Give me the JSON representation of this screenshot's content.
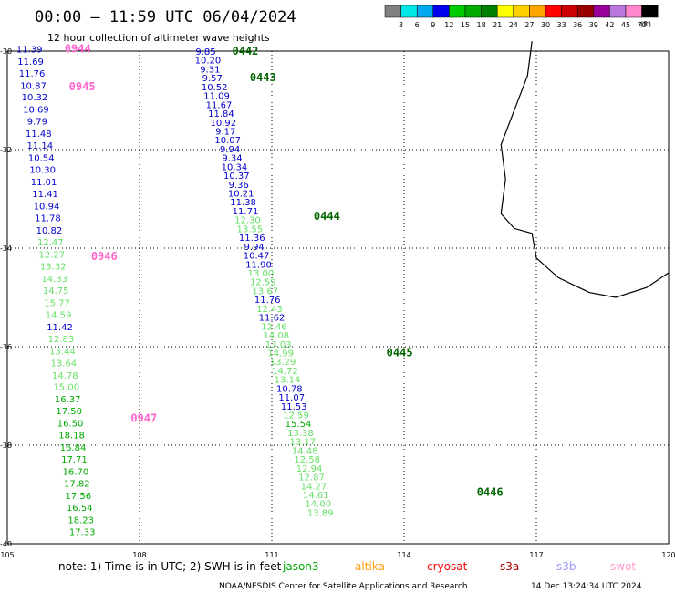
{
  "header": {
    "title": "00:00 — 11:59 UTC 06/04/2024",
    "subtitle": "12 hour collection of altimeter wave heights"
  },
  "legend": {
    "unit": "(ft)",
    "colors": [
      "#808080",
      "#00e5e5",
      "#00a8f0",
      "#0000ee",
      "#00cc00",
      "#00aa00",
      "#008000",
      "#ffff00",
      "#ffd000",
      "#ffa500",
      "#ff0000",
      "#cc0000",
      "#990000",
      "#990099",
      "#bb77dd",
      "#ff88cc",
      "#000000"
    ],
    "labels": [
      "3",
      "6",
      "9",
      "12",
      "15",
      "18",
      "21",
      "24",
      "27",
      "30",
      "33",
      "36",
      "39",
      "42",
      "45",
      "70"
    ]
  },
  "axes": {
    "lon_labels": [
      "105",
      "108",
      "111",
      "114",
      "117",
      "120"
    ],
    "lat_labels": [
      "-30",
      "-32",
      "-34",
      "-36",
      "-38",
      "-40"
    ]
  },
  "colors": {
    "blue": "#0000cc",
    "green": "#00aa00",
    "lightgreen": "#66e066",
    "pink": "#ff66cc",
    "darkgreen": "#006600"
  },
  "tracks": [
    {
      "pass_labels": [
        {
          "text": "0944",
          "lon": 106.3,
          "lat": -29.95
        },
        {
          "text": "0945",
          "lon": 106.4,
          "lat": -30.72
        },
        {
          "text": "0946",
          "lon": 106.9,
          "lat": -34.17
        },
        {
          "text": "0947",
          "lon": 107.8,
          "lat": -37.45
        }
      ],
      "points": [
        {
          "lon": 105.5,
          "lat": -29.95,
          "v": "11.39",
          "c": "blue"
        },
        {
          "lon": 105.53,
          "lat": -30.2,
          "v": "11.69",
          "c": "blue"
        },
        {
          "lon": 105.56,
          "lat": -30.44,
          "v": "11.76",
          "c": "blue"
        },
        {
          "lon": 105.59,
          "lat": -30.69,
          "v": "10.87",
          "c": "blue"
        },
        {
          "lon": 105.62,
          "lat": -30.93,
          "v": "10.32",
          "c": "blue"
        },
        {
          "lon": 105.65,
          "lat": -31.18,
          "v": "10.69",
          "c": "blue"
        },
        {
          "lon": 105.68,
          "lat": -31.42,
          "v": "9.79",
          "c": "blue"
        },
        {
          "lon": 105.71,
          "lat": -31.67,
          "v": "11.48",
          "c": "blue"
        },
        {
          "lon": 105.74,
          "lat": -31.91,
          "v": "11.14",
          "c": "blue"
        },
        {
          "lon": 105.77,
          "lat": -32.16,
          "v": "10.54",
          "c": "blue"
        },
        {
          "lon": 105.8,
          "lat": -32.4,
          "v": "10.30",
          "c": "blue"
        },
        {
          "lon": 105.83,
          "lat": -32.65,
          "v": "11.01",
          "c": "blue"
        },
        {
          "lon": 105.86,
          "lat": -32.89,
          "v": "11.41",
          "c": "blue"
        },
        {
          "lon": 105.89,
          "lat": -33.14,
          "v": "10.94",
          "c": "blue"
        },
        {
          "lon": 105.92,
          "lat": -33.38,
          "v": "11.78",
          "c": "blue"
        },
        {
          "lon": 105.95,
          "lat": -33.63,
          "v": "10.82",
          "c": "blue"
        },
        {
          "lon": 105.98,
          "lat": -33.87,
          "v": "12.47",
          "c": "lightgreen"
        },
        {
          "lon": 106.01,
          "lat": -34.12,
          "v": "12.27",
          "c": "lightgreen"
        },
        {
          "lon": 106.04,
          "lat": -34.36,
          "v": "13.32",
          "c": "lightgreen"
        },
        {
          "lon": 106.07,
          "lat": -34.61,
          "v": "14.33",
          "c": "lightgreen"
        },
        {
          "lon": 106.1,
          "lat": -34.85,
          "v": "14.75",
          "c": "lightgreen"
        },
        {
          "lon": 106.13,
          "lat": -35.1,
          "v": "15.77",
          "c": "lightgreen"
        },
        {
          "lon": 106.16,
          "lat": -35.34,
          "v": "14.59",
          "c": "lightgreen"
        },
        {
          "lon": 106.19,
          "lat": -35.59,
          "v": "11.42",
          "c": "blue"
        },
        {
          "lon": 106.22,
          "lat": -35.83,
          "v": "12.83",
          "c": "lightgreen"
        },
        {
          "lon": 106.25,
          "lat": -36.08,
          "v": "13.44",
          "c": "lightgreen"
        },
        {
          "lon": 106.28,
          "lat": -36.32,
          "v": "13.64",
          "c": "lightgreen"
        },
        {
          "lon": 106.31,
          "lat": -36.57,
          "v": "14.78",
          "c": "lightgreen"
        },
        {
          "lon": 106.34,
          "lat": -36.81,
          "v": "15.00",
          "c": "lightgreen"
        },
        {
          "lon": 106.37,
          "lat": -37.06,
          "v": "16.37",
          "c": "green"
        },
        {
          "lon": 106.4,
          "lat": -37.3,
          "v": "17.50",
          "c": "green"
        },
        {
          "lon": 106.43,
          "lat": -37.55,
          "v": "16.50",
          "c": "green"
        },
        {
          "lon": 106.46,
          "lat": -37.79,
          "v": "18.18",
          "c": "green"
        },
        {
          "lon": 106.49,
          "lat": -38.04,
          "v": "16.84",
          "c": "green"
        },
        {
          "lon": 106.52,
          "lat": -38.28,
          "v": "17.71",
          "c": "green"
        },
        {
          "lon": 106.55,
          "lat": -38.53,
          "v": "16.70",
          "c": "green"
        },
        {
          "lon": 106.58,
          "lat": -38.77,
          "v": "17.82",
          "c": "green"
        },
        {
          "lon": 106.61,
          "lat": -39.02,
          "v": "17.56",
          "c": "green"
        },
        {
          "lon": 106.64,
          "lat": -39.26,
          "v": "16.54",
          "c": "green"
        },
        {
          "lon": 106.67,
          "lat": -39.51,
          "v": "18.23",
          "c": "green"
        },
        {
          "lon": 106.7,
          "lat": -39.75,
          "v": "17.33",
          "c": "green"
        }
      ]
    },
    {
      "pass_labels": [
        {
          "text": "0442",
          "lon": 110.1,
          "lat": -30.0
        },
        {
          "text": "0443",
          "lon": 110.5,
          "lat": -30.54
        },
        {
          "text": "0444",
          "lon": 111.95,
          "lat": -33.35
        },
        {
          "text": "0445",
          "lon": 113.6,
          "lat": -36.12
        },
        {
          "text": "0446",
          "lon": 115.65,
          "lat": -38.95
        }
      ],
      "points": [
        {
          "lon": 109.5,
          "lat": -30.0,
          "v": "9.85",
          "c": "blue"
        },
        {
          "lon": 109.55,
          "lat": -30.18,
          "v": "10.20",
          "c": "blue"
        },
        {
          "lon": 109.6,
          "lat": -30.36,
          "v": "9.31",
          "c": "blue"
        },
        {
          "lon": 109.65,
          "lat": -30.54,
          "v": "9.57",
          "c": "blue"
        },
        {
          "lon": 109.7,
          "lat": -30.72,
          "v": "10.52",
          "c": "blue"
        },
        {
          "lon": 109.75,
          "lat": -30.9,
          "v": "11.09",
          "c": "blue"
        },
        {
          "lon": 109.8,
          "lat": -31.08,
          "v": "11.67",
          "c": "blue"
        },
        {
          "lon": 109.85,
          "lat": -31.26,
          "v": "11.84",
          "c": "blue"
        },
        {
          "lon": 109.9,
          "lat": -31.44,
          "v": "10.92",
          "c": "blue"
        },
        {
          "lon": 109.95,
          "lat": -31.62,
          "v": "9.17",
          "c": "blue"
        },
        {
          "lon": 110.0,
          "lat": -31.8,
          "v": "10.07",
          "c": "blue"
        },
        {
          "lon": 110.05,
          "lat": -31.98,
          "v": "9.94",
          "c": "blue"
        },
        {
          "lon": 110.1,
          "lat": -32.16,
          "v": "9.34",
          "c": "blue"
        },
        {
          "lon": 110.15,
          "lat": -32.34,
          "v": "10.34",
          "c": "blue"
        },
        {
          "lon": 110.2,
          "lat": -32.52,
          "v": "10.37",
          "c": "blue"
        },
        {
          "lon": 110.25,
          "lat": -32.7,
          "v": "9.36",
          "c": "blue"
        },
        {
          "lon": 110.3,
          "lat": -32.88,
          "v": "10.21",
          "c": "blue"
        },
        {
          "lon": 110.35,
          "lat": -33.06,
          "v": "11.38",
          "c": "blue"
        },
        {
          "lon": 110.4,
          "lat": -33.24,
          "v": "11.71",
          "c": "blue"
        },
        {
          "lon": 110.45,
          "lat": -33.42,
          "v": "12.30",
          "c": "lightgreen"
        },
        {
          "lon": 110.5,
          "lat": -33.6,
          "v": "13.55",
          "c": "lightgreen"
        },
        {
          "lon": 110.55,
          "lat": -33.78,
          "v": "11.36",
          "c": "blue"
        },
        {
          "lon": 110.6,
          "lat": -33.96,
          "v": "9.94",
          "c": "blue"
        },
        {
          "lon": 110.65,
          "lat": -34.14,
          "v": "10.47",
          "c": "blue"
        },
        {
          "lon": 110.7,
          "lat": -34.32,
          "v": "11.90",
          "c": "blue"
        },
        {
          "lon": 110.75,
          "lat": -34.5,
          "v": "13.00",
          "c": "lightgreen"
        },
        {
          "lon": 110.8,
          "lat": -34.68,
          "v": "12.59",
          "c": "lightgreen"
        },
        {
          "lon": 110.85,
          "lat": -34.86,
          "v": "13.67",
          "c": "lightgreen"
        },
        {
          "lon": 110.9,
          "lat": -35.04,
          "v": "11.76",
          "c": "blue"
        },
        {
          "lon": 110.95,
          "lat": -35.22,
          "v": "12.43",
          "c": "lightgreen"
        },
        {
          "lon": 111.0,
          "lat": -35.4,
          "v": "11.62",
          "c": "blue"
        },
        {
          "lon": 111.05,
          "lat": -35.58,
          "v": "12.46",
          "c": "lightgreen"
        },
        {
          "lon": 111.1,
          "lat": -35.76,
          "v": "14.08",
          "c": "lightgreen"
        },
        {
          "lon": 111.15,
          "lat": -35.94,
          "v": "13.03",
          "c": "lightgreen"
        },
        {
          "lon": 111.2,
          "lat": -36.12,
          "v": "14.99",
          "c": "lightgreen"
        },
        {
          "lon": 111.25,
          "lat": -36.3,
          "v": "13.29",
          "c": "lightgreen"
        },
        {
          "lon": 111.3,
          "lat": -36.48,
          "v": "14.72",
          "c": "lightgreen"
        },
        {
          "lon": 111.35,
          "lat": -36.66,
          "v": "13.14",
          "c": "lightgreen"
        },
        {
          "lon": 111.4,
          "lat": -36.84,
          "v": "10.78",
          "c": "blue"
        },
        {
          "lon": 111.45,
          "lat": -37.02,
          "v": "11.07",
          "c": "blue"
        },
        {
          "lon": 111.5,
          "lat": -37.2,
          "v": "11.53",
          "c": "blue"
        },
        {
          "lon": 111.55,
          "lat": -37.38,
          "v": "12.59",
          "c": "lightgreen"
        },
        {
          "lon": 111.6,
          "lat": -37.56,
          "v": "15.54",
          "c": "green"
        },
        {
          "lon": 111.65,
          "lat": -37.74,
          "v": "13.38",
          "c": "lightgreen"
        },
        {
          "lon": 111.7,
          "lat": -37.92,
          "v": "13.17",
          "c": "lightgreen"
        },
        {
          "lon": 111.75,
          "lat": -38.1,
          "v": "14.48",
          "c": "lightgreen"
        },
        {
          "lon": 111.8,
          "lat": -38.28,
          "v": "12.58",
          "c": "lightgreen"
        },
        {
          "lon": 111.85,
          "lat": -38.46,
          "v": "12.94",
          "c": "lightgreen"
        },
        {
          "lon": 111.9,
          "lat": -38.64,
          "v": "12.87",
          "c": "lightgreen"
        },
        {
          "lon": 111.95,
          "lat": -38.82,
          "v": "14.27",
          "c": "lightgreen"
        },
        {
          "lon": 112.0,
          "lat": -39.0,
          "v": "14.61",
          "c": "lightgreen"
        },
        {
          "lon": 112.05,
          "lat": -39.18,
          "v": "14.00",
          "c": "lightgreen"
        },
        {
          "lon": 112.1,
          "lat": -39.36,
          "v": "13.89",
          "c": "lightgreen"
        }
      ]
    }
  ],
  "coastline": [
    {
      "lon": 116.9,
      "lat": -29.8
    },
    {
      "lon": 116.8,
      "lat": -30.5
    },
    {
      "lon": 116.5,
      "lat": -31.2
    },
    {
      "lon": 116.2,
      "lat": -31.9
    },
    {
      "lon": 116.3,
      "lat": -32.6
    },
    {
      "lon": 116.2,
      "lat": -33.3
    },
    {
      "lon": 116.5,
      "lat": -33.6
    },
    {
      "lon": 116.9,
      "lat": -33.7
    },
    {
      "lon": 117.0,
      "lat": -34.2
    },
    {
      "lon": 117.5,
      "lat": -34.6
    },
    {
      "lon": 118.2,
      "lat": -34.9
    },
    {
      "lon": 118.8,
      "lat": -35.0
    },
    {
      "lon": 119.5,
      "lat": -34.8
    },
    {
      "lon": 120.0,
      "lat": -34.5
    }
  ],
  "footer": {
    "note": "note:  1) Time is in UTC;  2) SWH is in feet",
    "satellites": [
      {
        "name": "jason3",
        "color": "#00aa00"
      },
      {
        "name": "altika",
        "color": "#ff9900"
      },
      {
        "name": "cryosat",
        "color": "#ff0000"
      },
      {
        "name": "s3a",
        "color": "#aa0000"
      },
      {
        "name": "s3b",
        "color": "#9999ff"
      },
      {
        "name": "swot",
        "color": "#ff99cc"
      }
    ],
    "credit": "NOAA/NESDIS Center for Satellite Applications and Research",
    "generated": "14 Dec 13:24:34 UTC 2024"
  }
}
